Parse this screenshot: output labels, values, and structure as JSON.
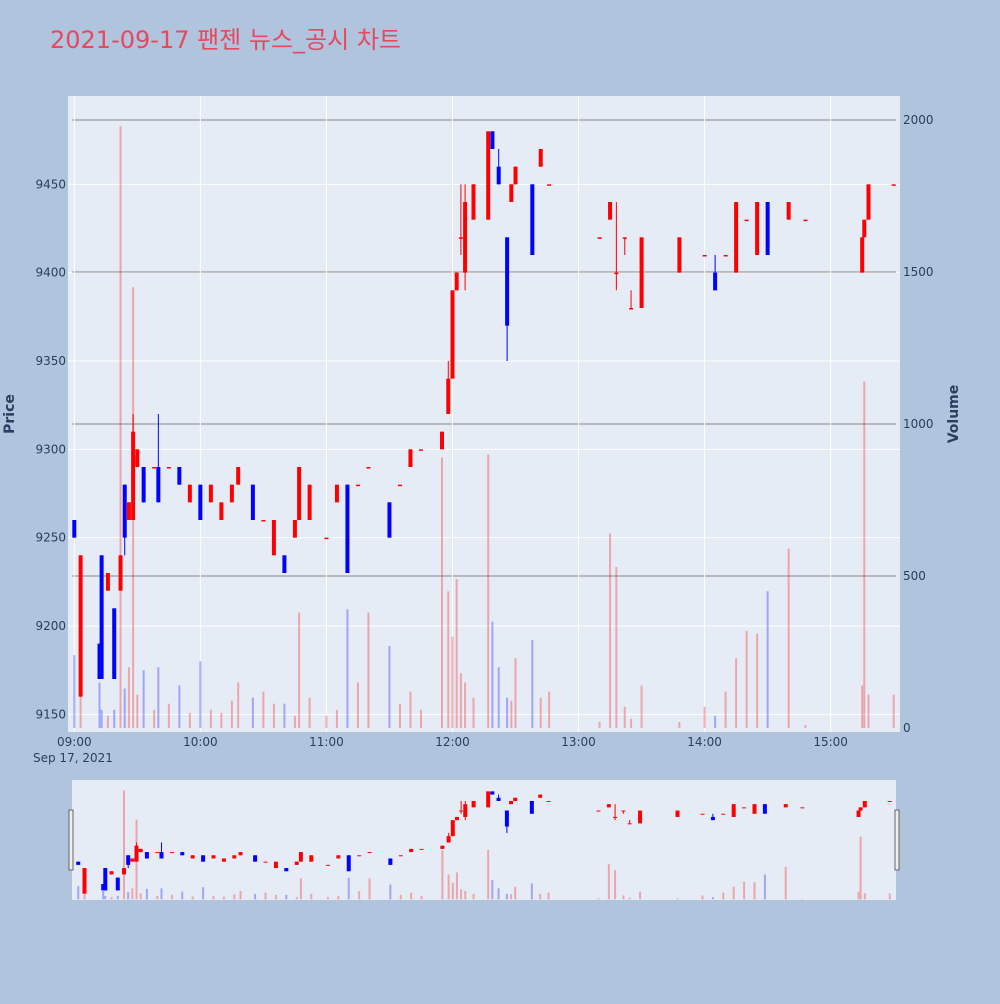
{
  "chart_data": {
    "type": "candlestick",
    "title": "2021-09-17 팬젠 뉴스_공시 차트",
    "y_axis_label": "Price",
    "y2_axis_label": "Volume",
    "x_date_label": "Sep 17, 2021",
    "increasing_color": "#ff0000",
    "decreasing_color": "#0000ff",
    "x": [
      "09:00",
      "09:03",
      "09:12",
      "09:13",
      "09:16",
      "09:19",
      "09:22",
      "09:24",
      "09:26",
      "09:28",
      "09:30",
      "09:33",
      "09:38",
      "09:40",
      "09:45",
      "09:50",
      "09:55",
      "10:00",
      "10:05",
      "10:10",
      "10:15",
      "10:18",
      "10:25",
      "10:30",
      "10:35",
      "10:40",
      "10:45",
      "10:47",
      "10:52",
      "11:00",
      "11:05",
      "11:10",
      "11:15",
      "11:20",
      "11:30",
      "11:35",
      "11:40",
      "11:45",
      "11:55",
      "11:58",
      "12:00",
      "12:02",
      "12:04",
      "12:06",
      "12:10",
      "12:17",
      "12:19",
      "12:22",
      "12:26",
      "12:28",
      "12:30",
      "12:38",
      "12:42",
      "12:46",
      "13:10",
      "13:15",
      "13:18",
      "13:22",
      "13:25",
      "13:30",
      "13:48",
      "14:00",
      "14:05",
      "14:10",
      "14:15",
      "14:20",
      "14:25",
      "14:30",
      "14:40",
      "14:48",
      "15:15",
      "15:16",
      "15:18",
      "15:30"
    ],
    "open": [
      9260,
      9160,
      9190,
      9240,
      9220,
      9210,
      9220,
      9280,
      9260,
      9260,
      9290,
      9290,
      9290,
      9290,
      9290,
      9290,
      9270,
      9280,
      9270,
      9260,
      9270,
      9280,
      9280,
      9260,
      9240,
      9240,
      9250,
      9260,
      9260,
      9250,
      9270,
      9280,
      9280,
      9290,
      9270,
      9280,
      9290,
      9300,
      9300,
      9320,
      9340,
      9390,
      9420,
      9400,
      9430,
      9430,
      9480,
      9460,
      9420,
      9440,
      9450,
      9450,
      9460,
      9450,
      9420,
      9430,
      9400,
      9420,
      9380,
      9380,
      9400,
      9410,
      9400,
      9410,
      9400,
      9430,
      9410,
      9440,
      9430,
      9430,
      9400,
      9420,
      9430,
      9450
    ],
    "high": [
      9260,
      9240,
      9190,
      9240,
      9230,
      9210,
      9240,
      9280,
      9270,
      9320,
      9300,
      9290,
      9290,
      9320,
      9290,
      9290,
      9280,
      9280,
      9280,
      9270,
      9280,
      9290,
      9280,
      9260,
      9260,
      9240,
      9260,
      9290,
      9280,
      9250,
      9280,
      9280,
      9280,
      9290,
      9270,
      9280,
      9300,
      9300,
      9310,
      9350,
      9390,
      9400,
      9450,
      9450,
      9450,
      9480,
      9480,
      9470,
      9420,
      9450,
      9460,
      9450,
      9470,
      9450,
      9420,
      9440,
      9440,
      9420,
      9390,
      9420,
      9420,
      9410,
      9410,
      9410,
      9440,
      9430,
      9440,
      9440,
      9440,
      9430,
      9420,
      9430,
      9450,
      9450
    ],
    "low": [
      9250,
      9160,
      9170,
      9170,
      9220,
      9170,
      9220,
      9240,
      9260,
      9260,
      9290,
      9270,
      9290,
      9270,
      9290,
      9280,
      9270,
      9260,
      9270,
      9260,
      9270,
      9280,
      9260,
      9260,
      9240,
      9230,
      9250,
      9260,
      9260,
      9250,
      9270,
      9230,
      9280,
      9290,
      9250,
      9280,
      9290,
      9300,
      9300,
      9320,
      9340,
      9390,
      9410,
      9390,
      9430,
      9430,
      9470,
      9450,
      9350,
      9440,
      9450,
      9410,
      9460,
      9450,
      9420,
      9430,
      9390,
      9410,
      9380,
      9380,
      9400,
      9410,
      9390,
      9410,
      9400,
      9430,
      9410,
      9410,
      9430,
      9430,
      9400,
      9420,
      9430,
      9450
    ],
    "close": [
      9250,
      9240,
      9170,
      9170,
      9230,
      9170,
      9240,
      9250,
      9270,
      9310,
      9300,
      9270,
      9290,
      9270,
      9290,
      9280,
      9280,
      9260,
      9280,
      9270,
      9280,
      9290,
      9260,
      9260,
      9260,
      9230,
      9260,
      9290,
      9280,
      9250,
      9280,
      9230,
      9280,
      9290,
      9250,
      9280,
      9300,
      9300,
      9310,
      9340,
      9390,
      9400,
      9420,
      9440,
      9450,
      9480,
      9470,
      9450,
      9370,
      9450,
      9460,
      9410,
      9470,
      9450,
      9420,
      9440,
      9400,
      9420,
      9380,
      9420,
      9420,
      9410,
      9390,
      9410,
      9440,
      9430,
      9440,
      9410,
      9440,
      9430,
      9420,
      9430,
      9450,
      9450
    ],
    "volume": [
      240,
      120,
      150,
      60,
      40,
      60,
      1980,
      130,
      200,
      1450,
      110,
      190,
      60,
      200,
      80,
      140,
      50,
      220,
      60,
      50,
      90,
      150,
      100,
      120,
      80,
      80,
      40,
      380,
      100,
      40,
      60,
      390,
      150,
      380,
      270,
      80,
      120,
      60,
      890,
      450,
      300,
      490,
      180,
      150,
      100,
      900,
      350,
      200,
      100,
      90,
      230,
      290,
      100,
      120,
      20,
      640,
      530,
      70,
      30,
      140,
      20,
      70,
      40,
      120,
      230,
      320,
      310,
      450,
      590,
      10,
      140,
      1140,
      110,
      110
    ],
    "xlim": [
      "08:57",
      "15:33"
    ],
    "xticks": [
      "09:00",
      "10:00",
      "11:00",
      "12:00",
      "13:00",
      "14:00",
      "15:00"
    ],
    "ylim": [
      9140,
      9500
    ],
    "yticks": [
      9150,
      9200,
      9250,
      9300,
      9350,
      9400,
      9450
    ],
    "y2lim": [
      -13,
      2079
    ],
    "y2ticks": [
      0,
      500,
      1000,
      1500,
      2000
    ],
    "range_slider": true
  }
}
